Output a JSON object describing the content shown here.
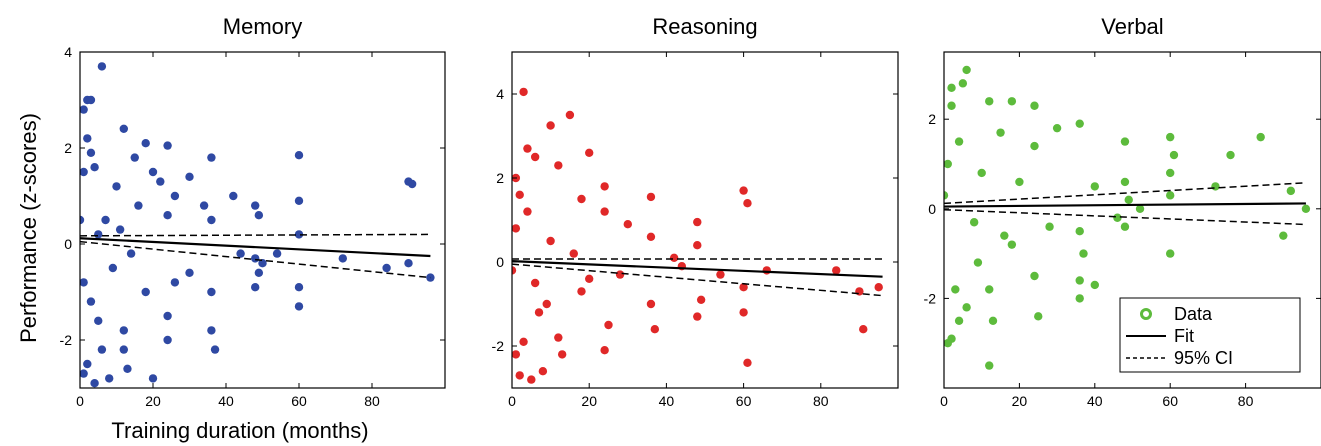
{
  "figure": {
    "ylabel": "Performance (z-scores)",
    "xlabel": "Training duration (months)"
  },
  "legend": {
    "placement": "bottom-right of Verbal panel",
    "items": [
      {
        "label": "Data",
        "style": "open-circle"
      },
      {
        "label": "Fit",
        "style": "solid-line"
      },
      {
        "label": "95% CI",
        "style": "dashed-line"
      }
    ]
  },
  "chart_data": [
    {
      "type": "scatter",
      "title": "Memory",
      "color": "#2f49a3",
      "xlim": [
        0,
        100
      ],
      "ylim": [
        -3,
        4
      ],
      "xticks": [
        0,
        20,
        40,
        60,
        80
      ],
      "yticks": [
        -2,
        0,
        2,
        4
      ],
      "grid": false,
      "fit": {
        "x": [
          0,
          96
        ],
        "y": [
          0.12,
          -0.25
        ]
      },
      "ci_upper": {
        "x": [
          0,
          96
        ],
        "y": [
          0.17,
          0.2
        ]
      },
      "ci_lower": {
        "x": [
          0,
          96
        ],
        "y": [
          0.05,
          -0.7
        ]
      },
      "points": [
        [
          6,
          3.7
        ],
        [
          2,
          3.0
        ],
        [
          3,
          3.0
        ],
        [
          1,
          2.8
        ],
        [
          12,
          2.4
        ],
        [
          18,
          2.1
        ],
        [
          24,
          2.05
        ],
        [
          36,
          1.8
        ],
        [
          60,
          1.85
        ],
        [
          15,
          1.8
        ],
        [
          20,
          1.5
        ],
        [
          30,
          1.4
        ],
        [
          22,
          1.3
        ],
        [
          90,
          1.3
        ],
        [
          91,
          1.25
        ],
        [
          48,
          0.8
        ],
        [
          49,
          0.6
        ],
        [
          60,
          0.9
        ],
        [
          34,
          0.8
        ],
        [
          36,
          0.5
        ],
        [
          42,
          1.0
        ],
        [
          26,
          1.0
        ],
        [
          24,
          0.6
        ],
        [
          16,
          0.8
        ],
        [
          10,
          1.2
        ],
        [
          60,
          0.2
        ],
        [
          48,
          -0.3
        ],
        [
          49,
          -0.6
        ],
        [
          48,
          -0.9
        ],
        [
          60,
          -0.9
        ],
        [
          60,
          -1.3
        ],
        [
          36,
          -1.0
        ],
        [
          37,
          -2.2
        ],
        [
          36,
          -1.8
        ],
        [
          24,
          -1.5
        ],
        [
          24,
          -2.0
        ],
        [
          12,
          -1.8
        ],
        [
          12,
          -2.2
        ],
        [
          13,
          -2.6
        ],
        [
          8,
          -2.8
        ],
        [
          4,
          -2.9
        ],
        [
          1,
          -2.7
        ],
        [
          2,
          -2.5
        ],
        [
          20,
          -2.8
        ],
        [
          6,
          -2.2
        ],
        [
          5,
          -1.6
        ],
        [
          3,
          -1.2
        ],
        [
          18,
          -1.0
        ],
        [
          26,
          -0.8
        ],
        [
          30,
          -0.6
        ],
        [
          84,
          -0.5
        ],
        [
          90,
          -0.4
        ],
        [
          96,
          -0.7
        ],
        [
          72,
          -0.3
        ],
        [
          44,
          -0.2
        ],
        [
          54,
          -0.2
        ],
        [
          50,
          -0.4
        ],
        [
          14,
          -0.2
        ],
        [
          11,
          0.3
        ],
        [
          9,
          -0.5
        ],
        [
          7,
          0.5
        ],
        [
          5,
          0.2
        ],
        [
          4,
          1.6
        ],
        [
          3,
          1.9
        ],
        [
          2,
          2.2
        ],
        [
          1,
          1.5
        ],
        [
          0,
          0.5
        ],
        [
          1,
          -0.8
        ]
      ]
    },
    {
      "type": "scatter",
      "title": "Reasoning",
      "color": "#e02828",
      "xlim": [
        0,
        100
      ],
      "ylim": [
        -3,
        5
      ],
      "xticks": [
        0,
        20,
        40,
        60,
        80
      ],
      "yticks": [
        -2,
        0,
        2,
        4
      ],
      "grid": false,
      "fit": {
        "x": [
          0,
          96
        ],
        "y": [
          0.02,
          -0.35
        ]
      },
      "ci_upper": {
        "x": [
          0,
          96
        ],
        "y": [
          0.07,
          0.07
        ]
      },
      "ci_lower": {
        "x": [
          0,
          96
        ],
        "y": [
          -0.05,
          -0.8
        ]
      },
      "points": [
        [
          3,
          4.05
        ],
        [
          15,
          3.5
        ],
        [
          10,
          3.25
        ],
        [
          20,
          2.6
        ],
        [
          4,
          2.7
        ],
        [
          6,
          2.5
        ],
        [
          12,
          2.3
        ],
        [
          24,
          1.8
        ],
        [
          36,
          1.55
        ],
        [
          60,
          1.7
        ],
        [
          61,
          1.4
        ],
        [
          48,
          0.95
        ],
        [
          24,
          1.2
        ],
        [
          18,
          1.5
        ],
        [
          30,
          0.9
        ],
        [
          42,
          0.1
        ],
        [
          48,
          0.4
        ],
        [
          36,
          0.6
        ],
        [
          84,
          -0.2
        ],
        [
          90,
          -0.7
        ],
        [
          95,
          -0.6
        ],
        [
          91,
          -1.6
        ],
        [
          60,
          -1.2
        ],
        [
          61,
          -2.4
        ],
        [
          60,
          -0.6
        ],
        [
          49,
          -0.9
        ],
        [
          48,
          -1.3
        ],
        [
          37,
          -1.6
        ],
        [
          36,
          -1.0
        ],
        [
          24,
          -2.1
        ],
        [
          25,
          -1.5
        ],
        [
          12,
          -1.8
        ],
        [
          13,
          -2.2
        ],
        [
          8,
          -2.6
        ],
        [
          5,
          -2.8
        ],
        [
          2,
          -2.7
        ],
        [
          1,
          -2.2
        ],
        [
          3,
          -1.9
        ],
        [
          7,
          -1.2
        ],
        [
          18,
          -0.7
        ],
        [
          28,
          -0.3
        ],
        [
          44,
          -0.1
        ],
        [
          54,
          -0.3
        ],
        [
          66,
          -0.2
        ],
        [
          10,
          0.5
        ],
        [
          4,
          1.2
        ],
        [
          2,
          1.6
        ],
        [
          1,
          0.8
        ],
        [
          6,
          -0.5
        ],
        [
          9,
          -1.0
        ],
        [
          16,
          0.2
        ],
        [
          20,
          -0.4
        ],
        [
          0,
          -0.2
        ],
        [
          1,
          2.0
        ]
      ]
    },
    {
      "type": "scatter",
      "title": "Verbal",
      "color": "#5dbb3c",
      "xlim": [
        0,
        100
      ],
      "ylim": [
        -4,
        3.5
      ],
      "xticks": [
        0,
        20,
        40,
        60,
        80
      ],
      "yticks": [
        -2,
        0,
        2
      ],
      "grid": false,
      "fit": {
        "x": [
          0,
          96
        ],
        "y": [
          0.05,
          0.12
        ]
      },
      "ci_upper": {
        "x": [
          0,
          96
        ],
        "y": [
          0.12,
          0.58
        ]
      },
      "ci_lower": {
        "x": [
          0,
          96
        ],
        "y": [
          -0.02,
          -0.35
        ]
      },
      "points": [
        [
          6,
          3.1
        ],
        [
          5,
          2.8
        ],
        [
          2,
          2.7
        ],
        [
          12,
          2.4
        ],
        [
          18,
          2.4
        ],
        [
          24,
          2.3
        ],
        [
          36,
          1.9
        ],
        [
          30,
          1.8
        ],
        [
          84,
          1.6
        ],
        [
          60,
          1.6
        ],
        [
          48,
          1.5
        ],
        [
          61,
          1.2
        ],
        [
          24,
          1.4
        ],
        [
          15,
          1.7
        ],
        [
          40,
          0.5
        ],
        [
          48,
          0.6
        ],
        [
          49,
          0.2
        ],
        [
          60,
          0.8
        ],
        [
          60,
          0.3
        ],
        [
          72,
          0.5
        ],
        [
          76,
          1.2
        ],
        [
          92,
          0.4
        ],
        [
          96,
          0.0
        ],
        [
          90,
          -0.6
        ],
        [
          60,
          -1.0
        ],
        [
          48,
          -0.4
        ],
        [
          36,
          -0.5
        ],
        [
          37,
          -1.0
        ],
        [
          36,
          -1.6
        ],
        [
          40,
          -1.7
        ],
        [
          36,
          -2.0
        ],
        [
          24,
          -1.5
        ],
        [
          25,
          -2.4
        ],
        [
          12,
          -1.8
        ],
        [
          13,
          -2.5
        ],
        [
          12,
          -3.5
        ],
        [
          6,
          -2.2
        ],
        [
          4,
          -2.5
        ],
        [
          2,
          -2.9
        ],
        [
          1,
          -3.0
        ],
        [
          3,
          -1.8
        ],
        [
          9,
          -1.2
        ],
        [
          18,
          -0.8
        ],
        [
          28,
          -0.4
        ],
        [
          46,
          -0.2
        ],
        [
          52,
          0.0
        ],
        [
          10,
          0.8
        ],
        [
          4,
          1.5
        ],
        [
          2,
          2.3
        ],
        [
          1,
          1.0
        ],
        [
          0,
          0.3
        ],
        [
          8,
          -0.3
        ],
        [
          20,
          0.6
        ],
        [
          16,
          -0.6
        ]
      ]
    }
  ]
}
